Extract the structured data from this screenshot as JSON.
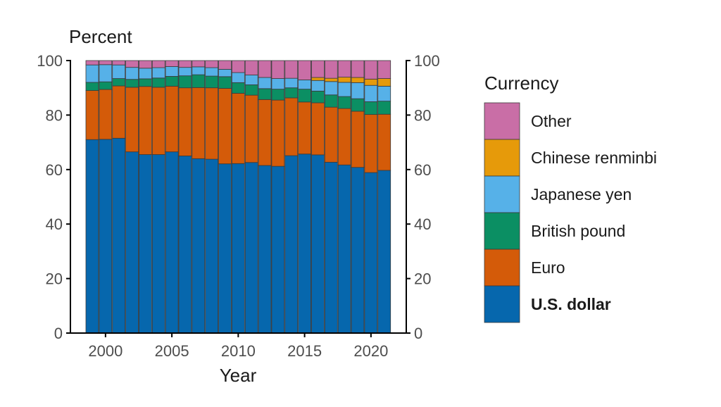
{
  "chart_data": {
    "type": "bar",
    "stacked": true,
    "percent_stacked": true,
    "ylabel": "Percent",
    "xlabel": "Year",
    "ylim": [
      0,
      100
    ],
    "y_ticks": [
      0,
      20,
      40,
      60,
      80,
      100
    ],
    "x_ticks": [
      2000,
      2005,
      2010,
      2015,
      2020
    ],
    "grid": false,
    "secondary_y_axis": true,
    "legend_title": "Currency",
    "legend_position": "right",
    "categories": [
      1999,
      2000,
      2001,
      2002,
      2003,
      2004,
      2005,
      2006,
      2007,
      2008,
      2009,
      2010,
      2011,
      2012,
      2013,
      2014,
      2015,
      2016,
      2017,
      2018,
      2019,
      2020,
      2021
    ],
    "series": [
      {
        "name": "U.S. dollar",
        "color": "#0667ad",
        "bold": true,
        "values": [
          71.0,
          71.1,
          71.5,
          66.5,
          65.5,
          65.5,
          66.5,
          65.0,
          64.0,
          63.8,
          62.1,
          62.2,
          62.6,
          61.5,
          61.2,
          65.1,
          65.7,
          65.4,
          62.7,
          61.7,
          60.8,
          58.9,
          59.7
        ]
      },
      {
        "name": "Euro",
        "color": "#d45b09",
        "values": [
          18.0,
          18.3,
          19.2,
          23.7,
          25.0,
          24.7,
          24.1,
          25.0,
          26.1,
          26.2,
          27.7,
          25.8,
          24.7,
          24.2,
          24.3,
          21.2,
          19.1,
          19.1,
          20.2,
          20.7,
          20.6,
          21.3,
          20.6
        ]
      },
      {
        "name": "British pound",
        "color": "#0b8f63",
        "values": [
          3.0,
          2.8,
          2.7,
          2.9,
          2.8,
          3.4,
          3.6,
          4.4,
          4.7,
          4.3,
          4.3,
          3.9,
          3.8,
          4.0,
          4.0,
          3.7,
          4.7,
          4.3,
          4.5,
          4.4,
          4.6,
          4.7,
          4.8
        ]
      },
      {
        "name": "Japanese yen",
        "color": "#56b1e8",
        "values": [
          6.4,
          6.3,
          5.0,
          4.4,
          3.9,
          3.8,
          3.6,
          3.1,
          2.9,
          3.1,
          2.7,
          3.7,
          3.6,
          4.1,
          3.9,
          3.5,
          3.4,
          3.9,
          4.9,
          5.2,
          5.9,
          6.0,
          5.5
        ]
      },
      {
        "name": "Chinese renminbi",
        "color": "#e69a0a",
        "values": [
          0,
          0,
          0,
          0,
          0,
          0,
          0,
          0,
          0,
          0,
          0,
          0,
          0,
          0,
          0,
          0,
          0,
          1.1,
          1.2,
          1.9,
          1.9,
          2.3,
          2.8
        ]
      },
      {
        "name": "Other",
        "color": "#c96ea6",
        "values": [
          1.6,
          1.5,
          1.6,
          2.5,
          2.8,
          2.6,
          2.2,
          2.5,
          2.3,
          2.6,
          3.2,
          4.4,
          5.3,
          6.2,
          6.6,
          6.5,
          7.1,
          6.2,
          6.5,
          6.1,
          6.2,
          6.8,
          6.6
        ]
      }
    ],
    "legend_order": [
      "Other",
      "Chinese renminbi",
      "Japanese yen",
      "British pound",
      "Euro",
      "U.S. dollar"
    ]
  }
}
